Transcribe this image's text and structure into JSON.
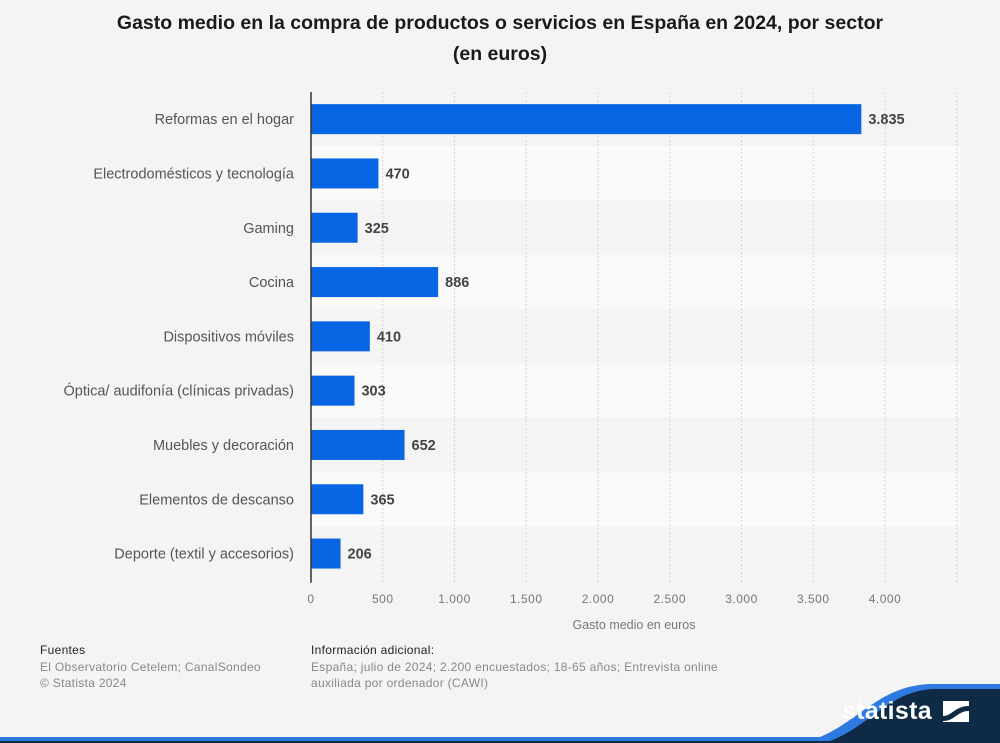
{
  "chart_data": {
    "type": "bar",
    "orientation": "horizontal",
    "title": "Gasto medio en la compra de productos o servicios en España en 2024, por sector (en euros)",
    "title_lines": [
      "Gasto medio en la compra de productos o servicios en España en 2024, por sector",
      "(en euros)"
    ],
    "categories": [
      "Reformas en el hogar",
      "Electrodomésticos y tecnología",
      "Gaming",
      "Cocina",
      "Dispositivos móviles",
      "Óptica/ audifonía (clínicas privadas)",
      "Muebles y decoración",
      "Elementos de descanso",
      "Deporte (textil y accesorios)"
    ],
    "values": [
      3835,
      470,
      325,
      886,
      410,
      303,
      652,
      365,
      206
    ],
    "value_labels": [
      "3.835",
      "470",
      "325",
      "886",
      "410",
      "303",
      "652",
      "365",
      "206"
    ],
    "xlabel": "Gasto medio en euros",
    "ylabel": "",
    "xlim": [
      0,
      4500
    ],
    "ticks": [
      0,
      500,
      1000,
      1500,
      2000,
      2500,
      3000,
      3500,
      4000
    ],
    "tick_labels": [
      "0",
      "500",
      "1.000",
      "1.500",
      "2.000",
      "2.500",
      "3.000",
      "3.500",
      "4.000"
    ],
    "grid": true,
    "bar_color": "#0866e4",
    "legend": "none"
  },
  "footer": {
    "sources_heading": "Fuentes",
    "sources_line1": "El Observatorio Cetelem; CanalSondeo",
    "sources_line2": "© Statista 2024",
    "info_heading": "Información adicional:",
    "info_line1": "España; julio de 2024; 2.200 encuestados; 18-65 años; Entrevista online",
    "info_line2": "auxiliada por ordenador (CAWI)"
  },
  "brand": {
    "name": "statista",
    "dark_color": "#0f2a45",
    "accent_color": "#2f7ae0"
  }
}
